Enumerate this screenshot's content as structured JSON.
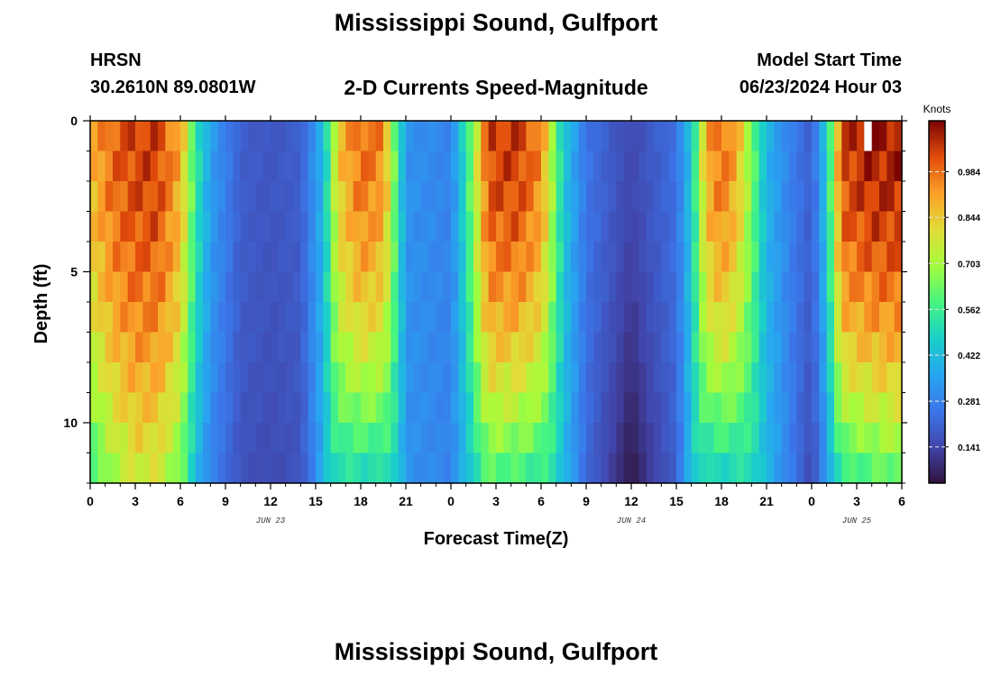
{
  "header": {
    "title": "Mississippi Sound, Gulfport",
    "station_code": "HRSN",
    "coordinates": "30.2610N  89.0801W",
    "subtitle": "2-D Currents Speed-Magnitude",
    "model_label": "Model Start Time",
    "model_time": "06/23/2024 Hour 03"
  },
  "footer": {
    "title": "Mississippi Sound, Gulfport"
  },
  "chart_data": {
    "type": "heatmap",
    "title": "Mississippi Sound, Gulfport",
    "subtitle": "2-D Currents Speed-Magnitude",
    "xlabel": "Forecast Time(Z)",
    "ylabel": "Depth (ft)",
    "xlim": [
      0,
      54
    ],
    "ylim": [
      0,
      12
    ],
    "y_inverted": true,
    "x_ticks": [
      0,
      3,
      6,
      9,
      12,
      15,
      18,
      21,
      24,
      27,
      30,
      33,
      36,
      39,
      42,
      45,
      48,
      51,
      54
    ],
    "x_tick_labels": [
      "0",
      "3",
      "6",
      "9",
      "12",
      "15",
      "18",
      "21",
      "0",
      "3",
      "6",
      "9",
      "12",
      "15",
      "18",
      "21",
      "0",
      "3",
      "6"
    ],
    "day_labels": [
      {
        "x": 12,
        "label": "JUN 23"
      },
      {
        "x": 36,
        "label": "JUN 24"
      },
      {
        "x": 51,
        "label": "JUN 25"
      }
    ],
    "y_ticks": [
      0,
      5,
      10
    ],
    "y_tick_labels": [
      "0",
      "5",
      "10"
    ],
    "colorbar": {
      "unit": "Knots",
      "range": [
        0.03,
        1.14
      ],
      "tick_values": [
        0.141,
        0.281,
        0.422,
        0.562,
        0.703,
        0.844,
        0.984
      ],
      "tick_labels": [
        "0.141",
        "0.281",
        "0.422",
        "0.562",
        "0.703",
        "0.844",
        "0.984"
      ],
      "colormap": "turbo"
    },
    "grid": {
      "x_start": 0,
      "x_step": 0.5,
      "x_count": 108,
      "y_start": 0,
      "y_step": 1,
      "y_count": 12
    },
    "time_profile": {
      "hours": [
        0,
        1.5,
        3,
        4.5,
        6,
        7,
        8,
        10,
        12,
        14,
        15.5,
        16.5,
        18,
        19.5,
        21,
        24,
        25,
        26.5,
        28.5,
        30,
        31.5,
        33,
        35,
        36,
        37,
        39,
        40,
        41,
        42,
        43,
        45,
        46.5,
        48,
        49,
        50,
        52,
        54
      ],
      "surface_speed": [
        0.88,
        1.0,
        1.05,
        1.05,
        0.9,
        0.55,
        0.35,
        0.2,
        0.18,
        0.2,
        0.4,
        0.85,
        1.0,
        0.95,
        0.32,
        0.28,
        0.52,
        1.05,
        1.06,
        0.95,
        0.45,
        0.25,
        0.18,
        0.15,
        0.18,
        0.24,
        0.45,
        0.9,
        1.0,
        0.9,
        0.4,
        0.28,
        0.2,
        0.45,
        1.05,
        1.1,
        1.1
      ],
      "bottom_factor": [
        0.62,
        0.68,
        0.72,
        0.72,
        0.7,
        0.75,
        0.8,
        0.85,
        0.85,
        0.85,
        0.95,
        0.58,
        0.48,
        0.5,
        1.0,
        1.0,
        0.75,
        0.55,
        0.52,
        0.55,
        0.9,
        0.9,
        0.6,
        0.25,
        0.6,
        0.85,
        0.95,
        0.5,
        0.46,
        0.52,
        1.0,
        1.0,
        0.75,
        0.7,
        0.5,
        0.52,
        0.55
      ]
    },
    "missing_cell": {
      "x": 51.5,
      "depth": 0,
      "note": "blank cell near surface"
    }
  }
}
